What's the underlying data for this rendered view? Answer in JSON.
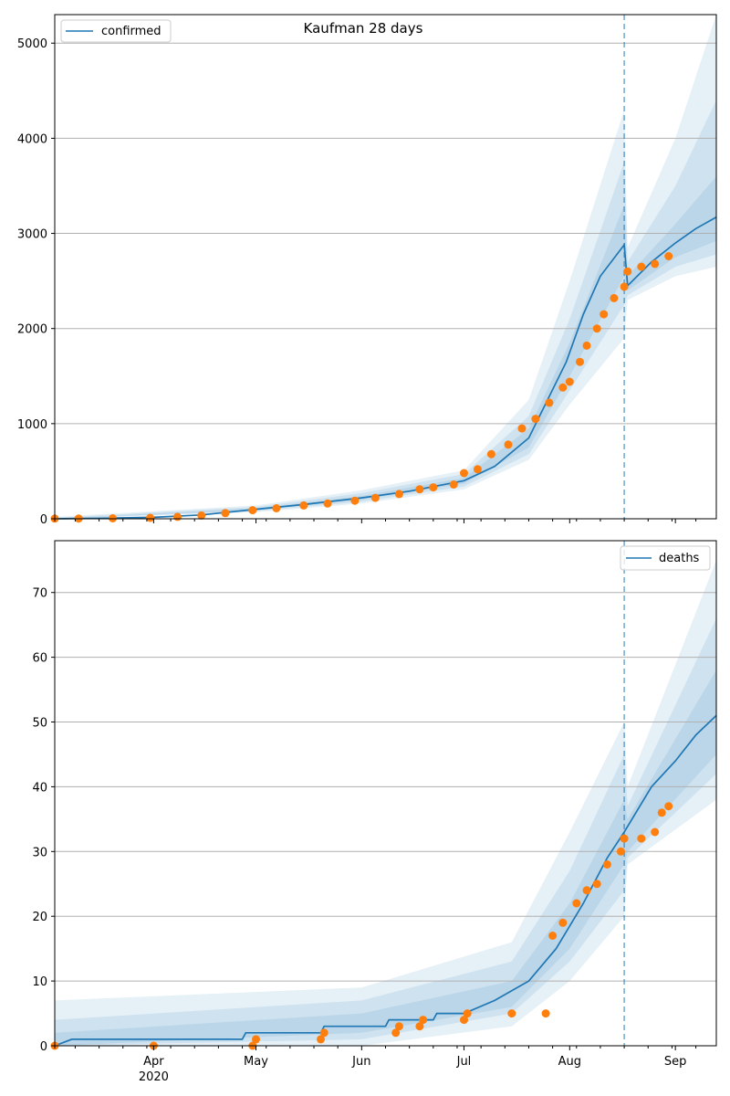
{
  "figure_title": "Kaufman 28 days",
  "colors": {
    "model_line": "#1f77b4",
    "observed_points": "#ff7f0e",
    "band": "#1f77b4",
    "grid": "#b0b0b0",
    "forecast_divider": "#1f77b4"
  },
  "x_ticks": {
    "major": [
      "Apr",
      "May",
      "Jun",
      "Jul",
      "Aug",
      "Sep"
    ],
    "year_label": "2020"
  },
  "chart_data": [
    {
      "type": "line",
      "panel": "top",
      "title": "Kaufman 28 days",
      "legend": [
        "confirmed"
      ],
      "legend_position": "top-left",
      "grid": "y",
      "xlim": [
        "2020-03-03",
        "2020-09-13"
      ],
      "ylim": [
        0,
        5300
      ],
      "yticks": [
        0,
        1000,
        2000,
        3000,
        4000,
        5000
      ],
      "forecast_start": "2020-08-17",
      "series": [
        {
          "name": "confirmed",
          "role": "model",
          "points": [
            [
              "2020-03-03",
              0
            ],
            [
              "2020-03-15",
              5
            ],
            [
              "2020-04-01",
              15
            ],
            [
              "2020-04-15",
              40
            ],
            [
              "2020-05-01",
              100
            ],
            [
              "2020-05-15",
              150
            ],
            [
              "2020-06-01",
              220
            ],
            [
              "2020-06-15",
              290
            ],
            [
              "2020-07-01",
              400
            ],
            [
              "2020-07-10",
              550
            ],
            [
              "2020-07-20",
              850
            ],
            [
              "2020-07-31",
              1650
            ],
            [
              "2020-08-05",
              2150
            ],
            [
              "2020-08-10",
              2550
            ],
            [
              "2020-08-17",
              2880
            ],
            [
              "2020-08-18",
              2450
            ],
            [
              "2020-08-25",
              2700
            ],
            [
              "2020-09-01",
              2900
            ],
            [
              "2020-09-07",
              3050
            ],
            [
              "2020-09-13",
              3170
            ]
          ]
        },
        {
          "role": "observed",
          "points": [
            [
              "2020-03-03",
              2
            ],
            [
              "2020-03-10",
              3
            ],
            [
              "2020-03-20",
              5
            ],
            [
              "2020-03-31",
              10
            ],
            [
              "2020-04-08",
              20
            ],
            [
              "2020-04-15",
              35
            ],
            [
              "2020-04-22",
              60
            ],
            [
              "2020-04-30",
              90
            ],
            [
              "2020-05-07",
              110
            ],
            [
              "2020-05-15",
              140
            ],
            [
              "2020-05-22",
              160
            ],
            [
              "2020-05-30",
              190
            ],
            [
              "2020-06-05",
              220
            ],
            [
              "2020-06-12",
              260
            ],
            [
              "2020-06-18",
              310
            ],
            [
              "2020-06-22",
              330
            ],
            [
              "2020-06-28",
              360
            ],
            [
              "2020-07-01",
              480
            ],
            [
              "2020-07-05",
              520
            ],
            [
              "2020-07-09",
              680
            ],
            [
              "2020-07-14",
              780
            ],
            [
              "2020-07-18",
              950
            ],
            [
              "2020-07-22",
              1050
            ],
            [
              "2020-07-26",
              1220
            ],
            [
              "2020-07-30",
              1380
            ],
            [
              "2020-08-01",
              1440
            ],
            [
              "2020-08-04",
              1650
            ],
            [
              "2020-08-06",
              1820
            ],
            [
              "2020-08-09",
              2000
            ],
            [
              "2020-08-11",
              2150
            ],
            [
              "2020-08-14",
              2320
            ],
            [
              "2020-08-17",
              2440
            ],
            [
              "2020-08-18",
              2600
            ],
            [
              "2020-08-22",
              2650
            ],
            [
              "2020-08-26",
              2680
            ],
            [
              "2020-08-30",
              2760
            ]
          ]
        }
      ],
      "bands": [
        {
          "level": "inner",
          "lower": [
            [
              "2020-03-03",
              0
            ],
            [
              "2020-05-01",
              90
            ],
            [
              "2020-06-01",
              200
            ],
            [
              "2020-07-01",
              370
            ],
            [
              "2020-07-20",
              750
            ],
            [
              "2020-08-01",
              1500
            ],
            [
              "2020-08-17",
              2550
            ],
            [
              "2020-08-18",
              2400
            ],
            [
              "2020-09-01",
              2750
            ],
            [
              "2020-09-13",
              2920
            ]
          ],
          "upper": [
            [
              "2020-03-03",
              0
            ],
            [
              "2020-05-01",
              110
            ],
            [
              "2020-06-01",
              240
            ],
            [
              "2020-07-01",
              430
            ],
            [
              "2020-07-20",
              950
            ],
            [
              "2020-08-01",
              1850
            ],
            [
              "2020-08-17",
              3300
            ],
            [
              "2020-08-18",
              2550
            ],
            [
              "2020-09-01",
              3100
            ],
            [
              "2020-09-13",
              3600
            ]
          ]
        },
        {
          "level": "middle",
          "lower": [
            [
              "2020-03-03",
              0
            ],
            [
              "2020-05-01",
              80
            ],
            [
              "2020-06-01",
              180
            ],
            [
              "2020-07-01",
              340
            ],
            [
              "2020-07-20",
              680
            ],
            [
              "2020-08-01",
              1350
            ],
            [
              "2020-08-17",
              2250
            ],
            [
              "2020-08-18",
              2350
            ],
            [
              "2020-09-01",
              2650
            ],
            [
              "2020-09-13",
              2780
            ]
          ],
          "upper": [
            [
              "2020-03-03",
              10
            ],
            [
              "2020-05-01",
              125
            ],
            [
              "2020-06-01",
              270
            ],
            [
              "2020-07-01",
              470
            ],
            [
              "2020-07-20",
              1080
            ],
            [
              "2020-08-01",
              2100
            ],
            [
              "2020-08-17",
              3750
            ],
            [
              "2020-08-18",
              2700
            ],
            [
              "2020-09-01",
              3500
            ],
            [
              "2020-09-13",
              4400
            ]
          ]
        },
        {
          "level": "outer",
          "lower": [
            [
              "2020-03-03",
              0
            ],
            [
              "2020-05-01",
              70
            ],
            [
              "2020-06-01",
              160
            ],
            [
              "2020-07-01",
              310
            ],
            [
              "2020-07-20",
              620
            ],
            [
              "2020-08-01",
              1200
            ],
            [
              "2020-08-17",
              1900
            ],
            [
              "2020-08-18",
              2300
            ],
            [
              "2020-09-01",
              2550
            ],
            [
              "2020-09-13",
              2650
            ]
          ],
          "upper": [
            [
              "2020-03-03",
              20
            ],
            [
              "2020-05-01",
              140
            ],
            [
              "2020-06-01",
              300
            ],
            [
              "2020-07-01",
              510
            ],
            [
              "2020-07-20",
              1250
            ],
            [
              "2020-08-01",
              2500
            ],
            [
              "2020-08-17",
              4300
            ],
            [
              "2020-08-18",
              2850
            ],
            [
              "2020-09-01",
              4000
            ],
            [
              "2020-09-13",
              5300
            ]
          ]
        }
      ]
    },
    {
      "type": "line",
      "panel": "bottom",
      "legend": [
        "deaths"
      ],
      "legend_position": "top-right",
      "grid": "y",
      "xlim": [
        "2020-03-03",
        "2020-09-13"
      ],
      "ylim": [
        0,
        78
      ],
      "yticks": [
        0,
        10,
        20,
        30,
        40,
        50,
        60,
        70
      ],
      "forecast_start": "2020-08-17",
      "series": [
        {
          "name": "deaths",
          "role": "model",
          "points": [
            [
              "2020-03-03",
              0
            ],
            [
              "2020-03-08",
              1
            ],
            [
              "2020-04-27",
              1
            ],
            [
              "2020-04-28",
              2
            ],
            [
              "2020-05-20",
              2
            ],
            [
              "2020-05-21",
              3
            ],
            [
              "2020-06-08",
              3
            ],
            [
              "2020-06-09",
              4
            ],
            [
              "2020-06-22",
              4
            ],
            [
              "2020-06-23",
              5
            ],
            [
              "2020-07-01",
              5
            ],
            [
              "2020-07-10",
              7
            ],
            [
              "2020-07-20",
              10
            ],
            [
              "2020-07-28",
              15
            ],
            [
              "2020-08-05",
              22
            ],
            [
              "2020-08-12",
              29
            ],
            [
              "2020-08-17",
              33
            ],
            [
              "2020-08-25",
              40
            ],
            [
              "2020-09-01",
              44
            ],
            [
              "2020-09-07",
              48
            ],
            [
              "2020-09-13",
              51
            ]
          ]
        },
        {
          "role": "observed",
          "points": [
            [
              "2020-03-03",
              0
            ],
            [
              "2020-04-01",
              0
            ],
            [
              "2020-04-30",
              0
            ],
            [
              "2020-05-01",
              1
            ],
            [
              "2020-05-20",
              1
            ],
            [
              "2020-05-21",
              2
            ],
            [
              "2020-06-11",
              2
            ],
            [
              "2020-06-12",
              3
            ],
            [
              "2020-06-18",
              3
            ],
            [
              "2020-06-19",
              4
            ],
            [
              "2020-07-01",
              4
            ],
            [
              "2020-07-02",
              5
            ],
            [
              "2020-07-15",
              5
            ],
            [
              "2020-07-25",
              5
            ],
            [
              "2020-07-27",
              17
            ],
            [
              "2020-07-30",
              19
            ],
            [
              "2020-08-03",
              22
            ],
            [
              "2020-08-06",
              24
            ],
            [
              "2020-08-09",
              25
            ],
            [
              "2020-08-12",
              28
            ],
            [
              "2020-08-16",
              30
            ],
            [
              "2020-08-17",
              32
            ],
            [
              "2020-08-22",
              32
            ],
            [
              "2020-08-26",
              33
            ],
            [
              "2020-08-28",
              36
            ],
            [
              "2020-08-30",
              37
            ]
          ]
        }
      ],
      "bands": [
        {
          "level": "inner",
          "lower": [
            [
              "2020-03-03",
              0
            ],
            [
              "2020-06-01",
              2
            ],
            [
              "2020-07-15",
              6
            ],
            [
              "2020-08-01",
              15
            ],
            [
              "2020-08-17",
              28
            ],
            [
              "2020-08-18",
              30
            ],
            [
              "2020-09-13",
              45
            ]
          ],
          "upper": [
            [
              "2020-03-03",
              2
            ],
            [
              "2020-06-01",
              5
            ],
            [
              "2020-07-15",
              10
            ],
            [
              "2020-08-01",
              22
            ],
            [
              "2020-08-17",
              38
            ],
            [
              "2020-08-18",
              35
            ],
            [
              "2020-09-13",
              58
            ]
          ]
        },
        {
          "level": "middle",
          "lower": [
            [
              "2020-03-03",
              0
            ],
            [
              "2020-06-01",
              1
            ],
            [
              "2020-07-15",
              5
            ],
            [
              "2020-08-01",
              13
            ],
            [
              "2020-08-17",
              24
            ],
            [
              "2020-08-18",
              29
            ],
            [
              "2020-09-13",
              42
            ]
          ],
          "upper": [
            [
              "2020-03-03",
              4
            ],
            [
              "2020-06-01",
              7
            ],
            [
              "2020-07-15",
              13
            ],
            [
              "2020-08-01",
              27
            ],
            [
              "2020-08-17",
              45
            ],
            [
              "2020-08-18",
              37
            ],
            [
              "2020-09-13",
              66
            ]
          ]
        },
        {
          "level": "outer",
          "lower": [
            [
              "2020-03-03",
              0
            ],
            [
              "2020-06-01",
              0
            ],
            [
              "2020-07-15",
              3
            ],
            [
              "2020-08-01",
              10
            ],
            [
              "2020-08-17",
              20
            ],
            [
              "2020-08-18",
              28
            ],
            [
              "2020-09-13",
              38
            ]
          ],
          "upper": [
            [
              "2020-03-03",
              7
            ],
            [
              "2020-06-01",
              9
            ],
            [
              "2020-07-15",
              16
            ],
            [
              "2020-08-01",
              33
            ],
            [
              "2020-08-17",
              50
            ],
            [
              "2020-08-18",
              40
            ],
            [
              "2020-09-13",
              75
            ]
          ]
        }
      ]
    }
  ]
}
